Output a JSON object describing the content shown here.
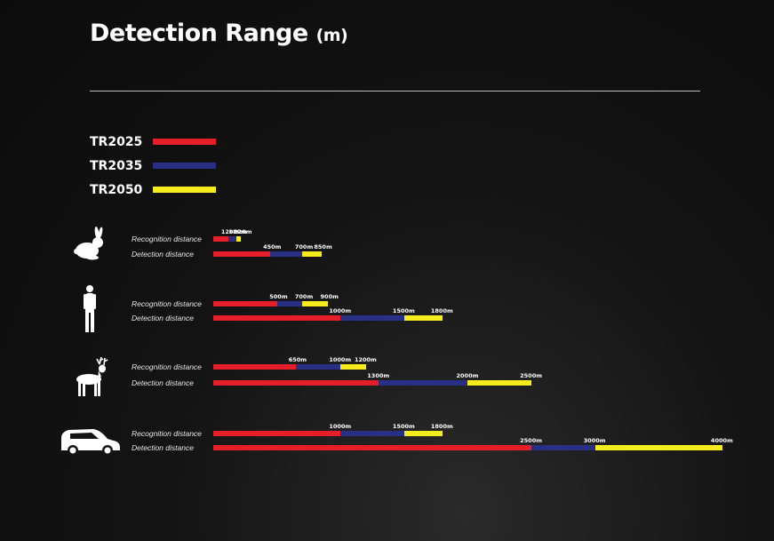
{
  "title": "Detection Range",
  "title_unit": "(m)",
  "colors": {
    "TR2025": "#e51e2a",
    "TR2035": "#2a2f86",
    "TR2050": "#f7ec1b"
  },
  "chart_data": {
    "type": "bar",
    "orientation": "horizontal",
    "stacked": true,
    "unit": "m",
    "series": [
      {
        "name": "TR2025",
        "color": "#e51e2a"
      },
      {
        "name": "TR2035",
        "color": "#2a2f86"
      },
      {
        "name": "TR2050",
        "color": "#f7ec1b"
      }
    ],
    "targets": [
      {
        "icon": "rabbit-icon",
        "rows": [
          {
            "label": "Recognition distance",
            "values": [
              120,
              180,
              220
            ],
            "labels": [
              "120m",
              "180m",
              "220m"
            ]
          },
          {
            "label": "Detection distance",
            "values": [
              450,
              700,
              850
            ],
            "labels": [
              "450m",
              "700m",
              "850m"
            ]
          }
        ]
      },
      {
        "icon": "human-icon",
        "rows": [
          {
            "label": "Recognition distance",
            "values": [
              500,
              700,
              900
            ],
            "labels": [
              "500m",
              "700m",
              "900m"
            ]
          },
          {
            "label": "Detection distance",
            "values": [
              1000,
              1500,
              1800
            ],
            "labels": [
              "1000m",
              "1500m",
              "1800m"
            ]
          }
        ]
      },
      {
        "icon": "deer-icon",
        "rows": [
          {
            "label": "Recognition distance",
            "values": [
              650,
              1000,
              1200
            ],
            "labels": [
              "650m",
              "1000m",
              "1200m"
            ]
          },
          {
            "label": "Detection distance",
            "values": [
              1300,
              2000,
              2500
            ],
            "labels": [
              "1300m",
              "2000m",
              "2500m"
            ]
          }
        ]
      },
      {
        "icon": "car-icon",
        "rows": [
          {
            "label": "Recognition distance",
            "values": [
              1000,
              1500,
              1800
            ],
            "labels": [
              "1000m",
              "1500m",
              "1800m"
            ]
          },
          {
            "label": "Detection distance",
            "values": [
              2500,
              3000,
              4000
            ],
            "labels": [
              "2500m",
              "3000m",
              "4000m"
            ]
          }
        ]
      }
    ]
  }
}
